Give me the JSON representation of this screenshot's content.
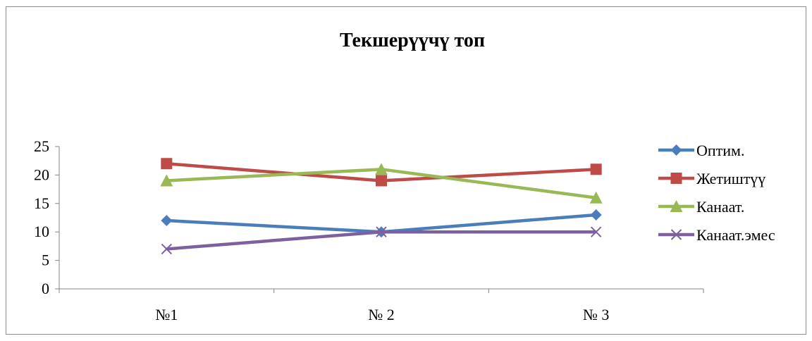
{
  "chart_data": {
    "type": "line",
    "title": "Текшерүүчү топ",
    "categories": [
      "№1",
      "№ 2",
      "№ 3"
    ],
    "ylim": [
      0,
      25
    ],
    "yticks": [
      0,
      5,
      10,
      15,
      20,
      25
    ],
    "grid": false,
    "legend_position": "right",
    "series": [
      {
        "name": "Оптим.",
        "values": [
          12,
          10,
          13
        ],
        "color": "#4a7ebb",
        "marker": "diamond"
      },
      {
        "name": "Жетиштүү",
        "values": [
          22,
          19,
          21
        ],
        "color": "#be4b48",
        "marker": "square"
      },
      {
        "name": "Канаат.",
        "values": [
          19,
          21,
          16
        ],
        "color": "#98b954",
        "marker": "triangle"
      },
      {
        "name": "Канаат.эмес",
        "values": [
          7,
          10,
          10
        ],
        "color": "#7d60a0",
        "marker": "x"
      }
    ]
  }
}
